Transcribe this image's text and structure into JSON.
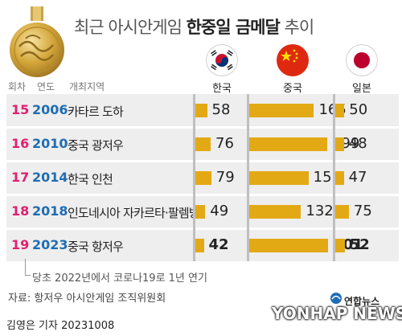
{
  "title": {
    "light_part": "최근 아시안게임 ",
    "bold_part": "한중일 금메달",
    "light_suffix": " 추이"
  },
  "column_headers": {
    "edition": "회차",
    "year": "연도",
    "venue": "개최지역"
  },
  "countries": [
    {
      "name": "한국",
      "flag_icon": "south-korea-flag-icon"
    },
    {
      "name": "중국",
      "flag_icon": "china-flag-icon"
    },
    {
      "name": "일본",
      "flag_icon": "japan-flag-icon"
    }
  ],
  "rows": [
    {
      "edition": "15",
      "year": "2006",
      "venue": "카타르 도하"
    },
    {
      "edition": "16",
      "year": "2010",
      "venue": "중국 광저우"
    },
    {
      "edition": "17",
      "year": "2014",
      "venue": "한국 인천"
    },
    {
      "edition": "18",
      "year": "2018",
      "venue": "인도네시아 자카르타·팔렘방"
    },
    {
      "edition": "19",
      "year": "2023",
      "venue": "중국 항저우"
    }
  ],
  "note": "당초 2022년에서 코로나19로 1년 연기",
  "source": "자료: 항저우 아시안게임 조직위원회",
  "credit": "김영은 기자  20231008",
  "logo": {
    "korean": "연합뉴스",
    "english": "YONHAP NEWS"
  },
  "colors": {
    "bar": "#e3a915",
    "edition": "#e0206f",
    "year": "#1f6db3",
    "row_bg": "#eeeeee"
  },
  "chart_data": {
    "type": "bar",
    "categories": [
      "2006",
      "2010",
      "2014",
      "2018",
      "2023"
    ],
    "series": [
      {
        "name": "한국",
        "values": [
          58,
          76,
          79,
          49,
          42
        ]
      },
      {
        "name": "중국",
        "values": [
          165,
          199,
          151,
          132,
          201
        ]
      },
      {
        "name": "일본",
        "values": [
          50,
          48,
          47,
          75,
          52
        ]
      }
    ],
    "title": "최근 아시안게임 한중일 금메달 추이",
    "orientation": "horizontal",
    "bold_last_row": true
  }
}
